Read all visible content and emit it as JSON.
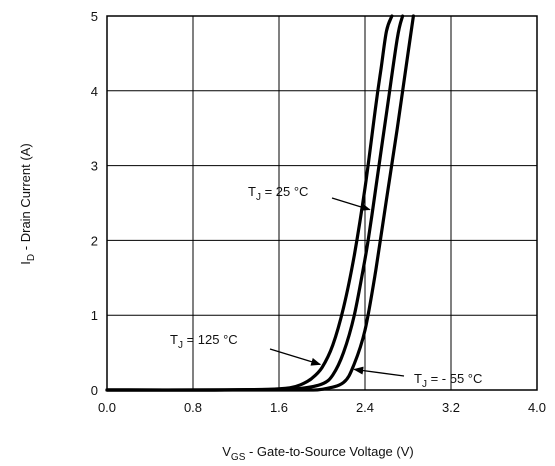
{
  "chart_data": {
    "type": "line",
    "title": "",
    "xlabel": {
      "main": "V",
      "sub": "GS",
      "rest": " - Gate-to-Source Voltage (V)"
    },
    "ylabel": {
      "main": "I",
      "sub": "D",
      "rest": " - Drain Current (A)"
    },
    "xlim": [
      0.0,
      4.0
    ],
    "ylim": [
      0,
      5
    ],
    "xticks": [
      "0.0",
      "0.8",
      "1.6",
      "2.4",
      "3.2",
      "4.0"
    ],
    "yticks": [
      "0",
      "1",
      "2",
      "3",
      "4",
      "5"
    ],
    "grid": true,
    "series": [
      {
        "name": "TJ = 125 °C",
        "x": [
          0.0,
          1.0,
          1.5,
          1.7,
          1.8,
          1.9,
          2.0,
          2.1,
          2.2,
          2.3,
          2.4,
          2.5,
          2.55,
          2.6,
          2.65
        ],
        "y": [
          0.0,
          0.0,
          0.01,
          0.03,
          0.07,
          0.15,
          0.3,
          0.6,
          1.1,
          1.8,
          2.7,
          3.8,
          4.3,
          4.8,
          5.0
        ]
      },
      {
        "name": "TJ = 25 °C",
        "x": [
          0.0,
          1.0,
          1.6,
          1.8,
          2.0,
          2.1,
          2.2,
          2.3,
          2.4,
          2.45,
          2.5,
          2.6,
          2.7,
          2.75
        ],
        "y": [
          0.0,
          0.0,
          0.01,
          0.02,
          0.08,
          0.2,
          0.5,
          1.0,
          1.75,
          2.2,
          2.7,
          3.7,
          4.7,
          5.0
        ]
      },
      {
        "name": "TJ = - 55 °C",
        "x": [
          0.0,
          1.0,
          1.8,
          2.0,
          2.2,
          2.3,
          2.4,
          2.5,
          2.6,
          2.7,
          2.8,
          2.85
        ],
        "y": [
          0.0,
          0.0,
          0.0,
          0.01,
          0.1,
          0.35,
          0.8,
          1.6,
          2.55,
          3.5,
          4.5,
          5.0
        ]
      }
    ],
    "annotations": [
      {
        "main": "T",
        "sub": "J",
        "rest": " = 25 °C",
        "target_series": 1,
        "target_y": 2.4
      },
      {
        "main": "T",
        "sub": "J",
        "rest": " = 125 °C",
        "target_series": 0,
        "target_y": 0.33
      },
      {
        "main": "T",
        "sub": "J",
        "rest": " = - 55 °C",
        "target_series": 2,
        "target_y": 0.28
      }
    ]
  }
}
